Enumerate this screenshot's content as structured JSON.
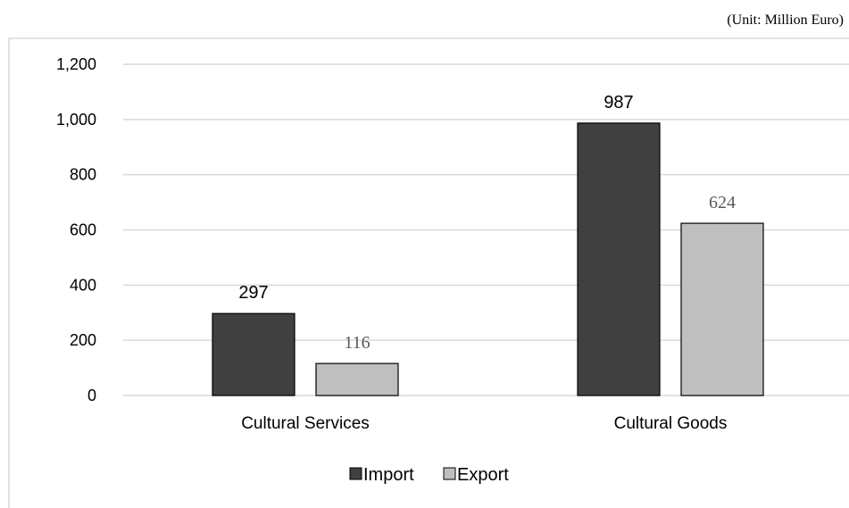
{
  "unit_label": "(Unit: Million Euro)",
  "chart_data": {
    "type": "bar",
    "categories": [
      "Cultural Services",
      "Cultural Goods"
    ],
    "series": [
      {
        "name": "Import",
        "values": [
          297,
          987
        ],
        "color": "#404040",
        "label_color": "#000000"
      },
      {
        "name": "Export",
        "values": [
          116,
          624
        ],
        "color": "#bfbfbf",
        "label_color": "#595959"
      }
    ],
    "yticks": [
      "0",
      "200",
      "400",
      "600",
      "800",
      "1,000",
      "1,200"
    ],
    "ylim": [
      0,
      1200
    ],
    "grid": true,
    "legend_position": "bottom",
    "title": "",
    "xlabel": "",
    "ylabel": ""
  }
}
